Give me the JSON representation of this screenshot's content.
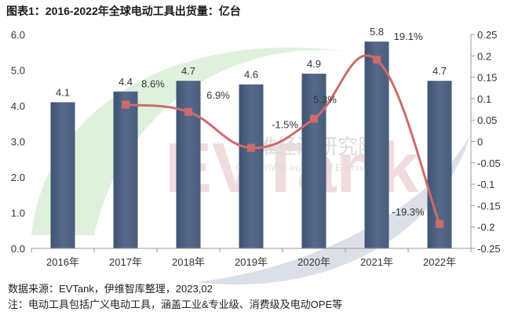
{
  "title": "图表1：2016-2022年全球电动工具出货量：亿台",
  "watermark": {
    "logo_text": "EVTank",
    "org_text": "伊维经济研究院",
    "org_en": "China YiWei Institute of Economics"
  },
  "footer": {
    "source": "数据来源：EVTank，伊维智库整理，2023,02",
    "note": "注：电动工具包括广义电动工具，涵盖工业&专业级、消费级及电动OPE等"
  },
  "chart_data": {
    "type": "bar+line",
    "categories": [
      "2016年",
      "2017年",
      "2018年",
      "2019年",
      "2020年",
      "2021年",
      "2022年"
    ],
    "series": [
      {
        "type": "bar",
        "axis": "left",
        "values": [
          4.1,
          4.4,
          4.7,
          4.6,
          4.9,
          5.8,
          4.7
        ],
        "labels": [
          "4.1",
          "4.4",
          "4.7",
          "4.6",
          "4.9",
          "5.8",
          "4.7"
        ],
        "color": "#56698a"
      },
      {
        "type": "line",
        "axis": "right",
        "values": [
          null,
          0.086,
          0.069,
          -0.015,
          0.053,
          0.191,
          -0.193
        ],
        "labels": [
          "",
          "8.6%",
          "6.9%",
          "-1.5%",
          "5.3%",
          "19.1%",
          "-19.3%"
        ],
        "color": "#cd6b6b"
      }
    ],
    "left_axis": {
      "range": [
        0,
        6
      ],
      "ticks": [
        "0.0",
        "1.0",
        "2.0",
        "3.0",
        "4.0",
        "5.0",
        "6.0"
      ]
    },
    "right_axis": {
      "range": [
        -0.25,
        0.25
      ],
      "ticks": [
        "-0.25",
        "-0.2",
        "-0.15",
        "-0.1",
        "-0.05",
        "0",
        "0.05",
        "0.1",
        "0.15",
        "0.2",
        "0.25"
      ]
    },
    "grid": false,
    "legend": "none"
  }
}
